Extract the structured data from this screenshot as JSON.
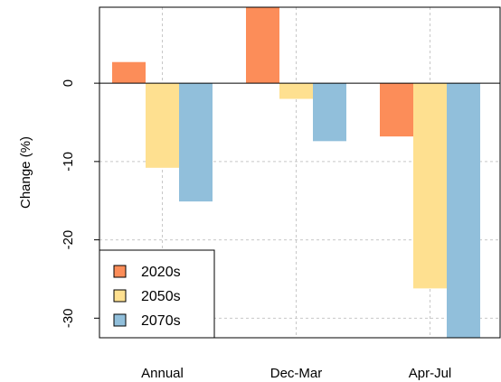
{
  "chart_data": {
    "type": "bar",
    "title": "",
    "xlabel": "",
    "ylabel": "Change (%)",
    "categories": [
      "Annual",
      "Dec-Mar",
      "Apr-Jul"
    ],
    "series": [
      {
        "name": "2020s",
        "values": [
          2.7,
          10.0,
          -6.8
        ],
        "color": "#FC8D59"
      },
      {
        "name": "2050s",
        "values": [
          -10.8,
          -2.0,
          -26.2
        ],
        "color": "#FEE090"
      },
      {
        "name": "2070s",
        "values": [
          -15.1,
          -7.4,
          -32.6
        ],
        "color": "#91BFDB"
      }
    ],
    "ylim": [
      -32.5,
      9.7
    ],
    "yticks": [
      0,
      -10,
      -20,
      -30
    ],
    "ytick_labels": [
      "0",
      "-10",
      "-20",
      "-30"
    ],
    "grid": true,
    "zero_line": true,
    "legend_position": "bottom-left"
  }
}
